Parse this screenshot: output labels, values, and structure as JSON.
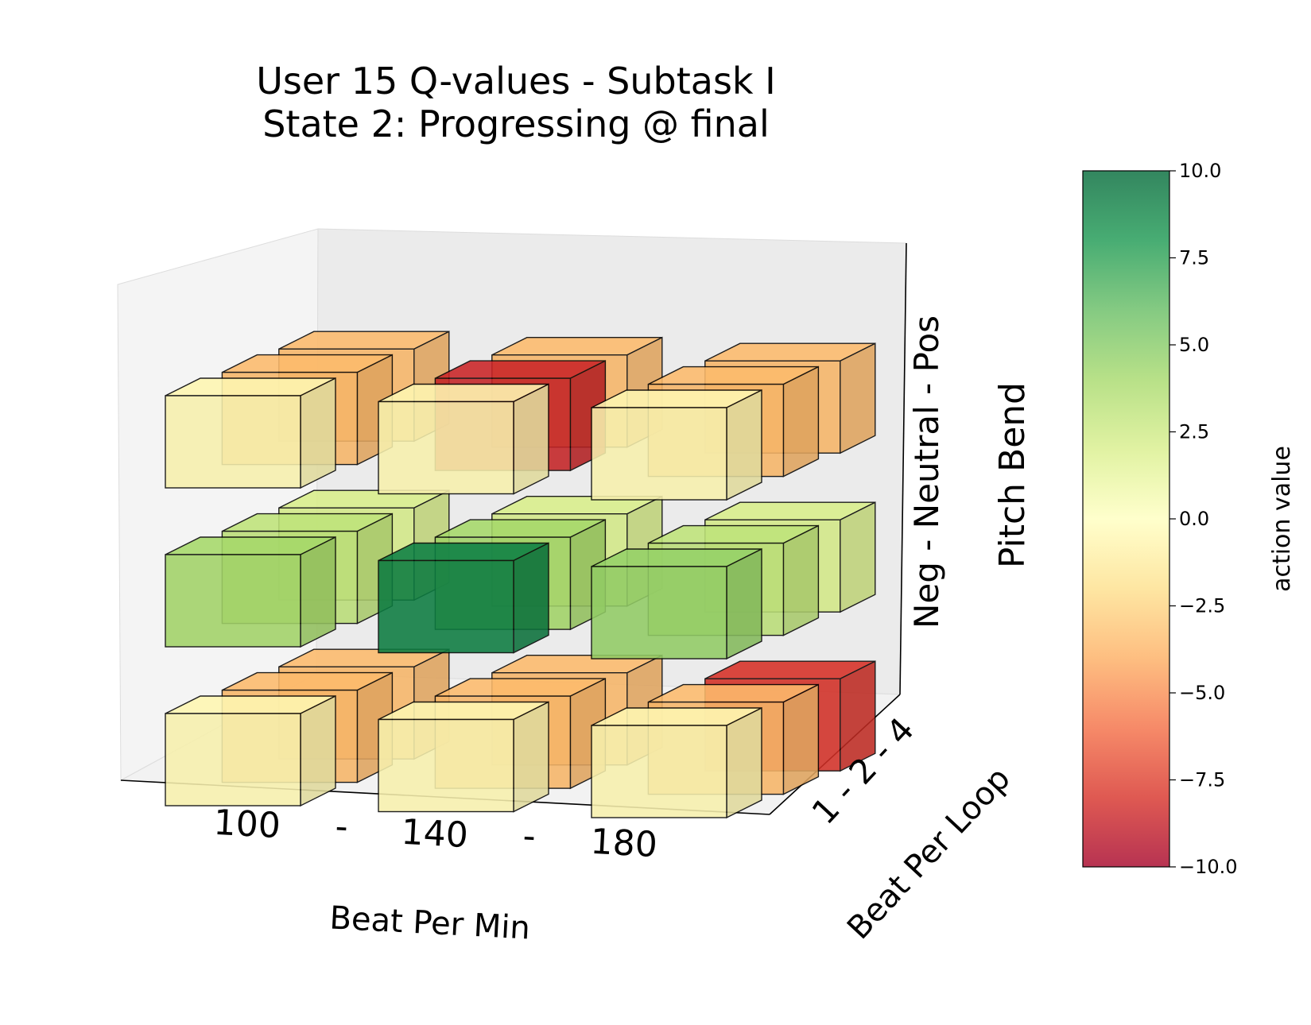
{
  "chart_data": {
    "type": "bar3d",
    "title": [
      "User 15 Q-values  -  Subtask I",
      "State 2: Progressing @ final"
    ],
    "xlabel": "Beat Per Min",
    "ylabel": "Beat Per Loop",
    "zlabel": "Pitch Bend",
    "x_tick_text": [
      "100",
      "-",
      "140",
      "-",
      "180"
    ],
    "y_tick_text": "1 - 2 - 4",
    "z_tick_text": "Neg - Neutral - Pos",
    "x_categories": [
      "100",
      "140",
      "180"
    ],
    "y_categories": [
      "1",
      "2",
      "4"
    ],
    "z_categories": [
      "Neg",
      "Neutral",
      "Pos"
    ],
    "values": [
      {
        "bpm": "100",
        "bpl": "1",
        "pitch": "Neg",
        "value": -0.5
      },
      {
        "bpm": "100",
        "bpl": "2",
        "pitch": "Neg",
        "value": -3.5
      },
      {
        "bpm": "100",
        "bpl": "4",
        "pitch": "Neg",
        "value": -3.5
      },
      {
        "bpm": "140",
        "bpl": "1",
        "pitch": "Neg",
        "value": -0.5
      },
      {
        "bpm": "140",
        "bpl": "2",
        "pitch": "Neg",
        "value": -3.5
      },
      {
        "bpm": "140",
        "bpl": "4",
        "pitch": "Neg",
        "value": -3.5
      },
      {
        "bpm": "180",
        "bpl": "1",
        "pitch": "Neg",
        "value": -0.5
      },
      {
        "bpm": "180",
        "bpl": "2",
        "pitch": "Neg",
        "value": -3.5
      },
      {
        "bpm": "180",
        "bpl": "4",
        "pitch": "Neg",
        "value": -8.0
      },
      {
        "bpm": "100",
        "bpl": "1",
        "pitch": "Neutral",
        "value": 4.0
      },
      {
        "bpm": "100",
        "bpl": "2",
        "pitch": "Neutral",
        "value": 3.0
      },
      {
        "bpm": "100",
        "bpl": "4",
        "pitch": "Neutral",
        "value": 2.0
      },
      {
        "bpm": "140",
        "bpl": "1",
        "pitch": "Neutral",
        "value": 9.0
      },
      {
        "bpm": "140",
        "bpl": "2",
        "pitch": "Neutral",
        "value": 4.0
      },
      {
        "bpm": "140",
        "bpl": "4",
        "pitch": "Neutral",
        "value": 2.0
      },
      {
        "bpm": "180",
        "bpl": "1",
        "pitch": "Neutral",
        "value": 4.5
      },
      {
        "bpm": "180",
        "bpl": "2",
        "pitch": "Neutral",
        "value": 3.0
      },
      {
        "bpm": "180",
        "bpl": "4",
        "pitch": "Neutral",
        "value": 2.0
      },
      {
        "bpm": "100",
        "bpl": "1",
        "pitch": "Pos",
        "value": -0.5
      },
      {
        "bpm": "100",
        "bpl": "2",
        "pitch": "Pos",
        "value": -3.5
      },
      {
        "bpm": "100",
        "bpl": "4",
        "pitch": "Pos",
        "value": -3.5
      },
      {
        "bpm": "140",
        "bpl": "1",
        "pitch": "Pos",
        "value": -0.5
      },
      {
        "bpm": "140",
        "bpl": "2",
        "pitch": "Pos",
        "value": -8.5
      },
      {
        "bpm": "140",
        "bpl": "4",
        "pitch": "Pos",
        "value": -3.5
      },
      {
        "bpm": "180",
        "bpl": "1",
        "pitch": "Pos",
        "value": -0.5
      },
      {
        "bpm": "180",
        "bpl": "2",
        "pitch": "Pos",
        "value": -3.5
      },
      {
        "bpm": "180",
        "bpl": "4",
        "pitch": "Pos",
        "value": -3.5
      }
    ],
    "colorbar": {
      "label": "action value",
      "range": [
        -10.0,
        10.0
      ],
      "ticks": [
        10.0,
        7.5,
        5.0,
        2.5,
        0.0,
        -2.5,
        -5.0,
        -7.5,
        -10.0
      ],
      "tick_labels": [
        "10.0",
        "7.5",
        "5.0",
        "2.5",
        "0.0",
        "−2.5",
        "−5.0",
        "−7.5",
        "−10.0"
      ],
      "colormap": "RdYlGn",
      "alpha": 0.8
    }
  }
}
